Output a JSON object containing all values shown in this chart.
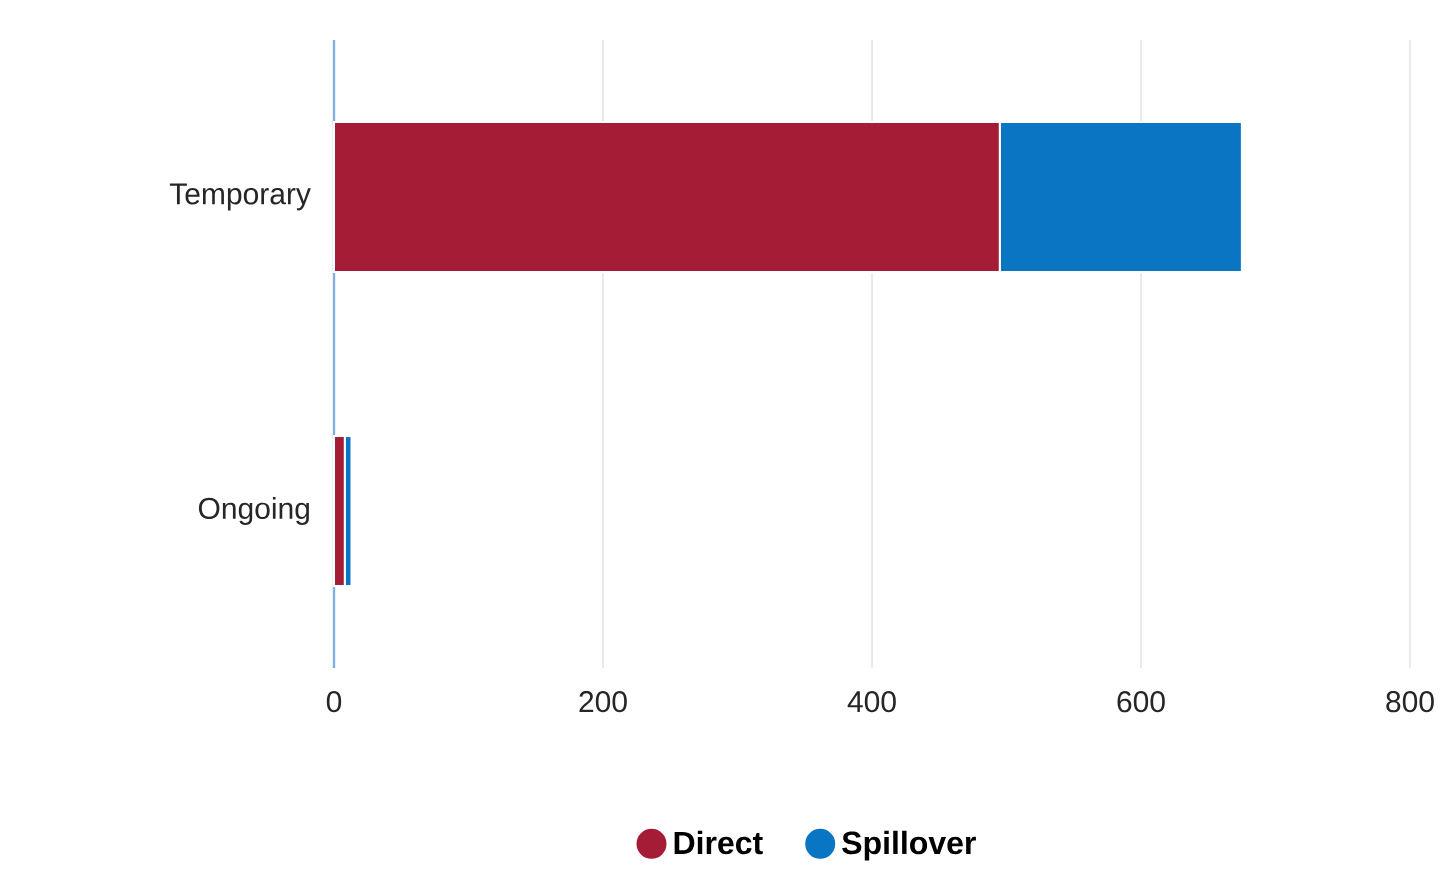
{
  "chart_data": {
    "type": "bar",
    "orientation": "horizontal",
    "stacked": true,
    "categories": [
      "Temporary",
      "Ongoing"
    ],
    "series": [
      {
        "name": "Direct",
        "color": "#a51c36",
        "values": [
          495,
          8
        ]
      },
      {
        "name": "Spillover",
        "color": "#0a75c2",
        "values": [
          180,
          5
        ]
      }
    ],
    "xlim": [
      0,
      800
    ],
    "xticks": [
      0,
      200,
      400,
      600,
      800
    ],
    "grid": "x",
    "legend": "bottom"
  }
}
